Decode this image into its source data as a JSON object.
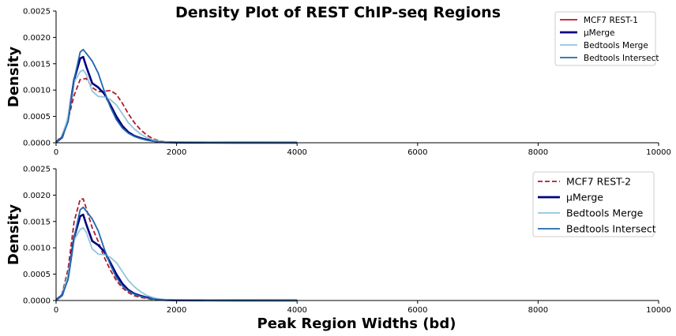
{
  "figure": {
    "title": "Density Plot of REST ChIP-seq Regions"
  },
  "colors": {
    "rest": "#b2182b",
    "umerge": "#000080",
    "bedtools_merge": "#92c5de",
    "bedtools_intersect": "#2166ac"
  },
  "chart_data": [
    {
      "type": "line",
      "title": "",
      "xlabel": "",
      "ylabel": "Density",
      "xlim": [
        0,
        10000
      ],
      "ylim": [
        0,
        0.0025
      ],
      "xticks": [
        "0",
        "2000",
        "4000",
        "6000",
        "8000",
        "10000"
      ],
      "xtick_values": [
        0,
        2000,
        4000,
        6000,
        8000,
        10000
      ],
      "yticks": [
        "0.0000",
        "0.0005",
        "0.0010",
        "0.0015",
        "0.0020",
        "0.0025"
      ],
      "ytick_values": [
        0,
        0.0005,
        0.001,
        0.0015,
        0.002,
        0.0025
      ],
      "legend_position": "upper-right",
      "series": [
        {
          "name": "MCF7 REST-1",
          "color": "#b2182b",
          "dash": true,
          "legend_dash": false,
          "x": [
            0,
            100,
            200,
            300,
            400,
            500,
            600,
            700,
            800,
            900,
            1000,
            1100,
            1200,
            1300,
            1400,
            1500,
            1600,
            1700,
            1800,
            2000,
            2500,
            3000,
            4000
          ],
          "y": [
            2e-05,
            0.00012,
            0.00045,
            0.0009,
            0.0012,
            0.00122,
            0.00105,
            0.00097,
            0.00098,
            0.00099,
            0.00092,
            0.00075,
            0.00055,
            0.00038,
            0.00025,
            0.00015,
            8e-05,
            4e-05,
            2e-05,
            1e-05,
            4e-06,
            2e-06,
            1e-06
          ]
        },
        {
          "name": "μMerge",
          "color": "#000080",
          "dash": false,
          "x": [
            0,
            100,
            200,
            300,
            400,
            450,
            500,
            600,
            700,
            800,
            900,
            1000,
            1100,
            1200,
            1300,
            1400,
            1500,
            1600,
            1700,
            1800,
            2000,
            2500,
            3000,
            4000
          ],
          "y": [
            1e-05,
            0.0001,
            0.00045,
            0.0012,
            0.0016,
            0.00163,
            0.00145,
            0.00113,
            0.00105,
            0.00093,
            0.00072,
            0.0005,
            0.00032,
            0.0002,
            0.00013,
            9e-05,
            6e-05,
            4e-05,
            2e-05,
            1e-05,
            5e-06,
            2e-06,
            1e-06,
            5e-07
          ]
        },
        {
          "name": "Bedtools Merge",
          "color": "#92c5de",
          "dash": false,
          "x": [
            0,
            100,
            200,
            300,
            400,
            450,
            500,
            600,
            700,
            800,
            900,
            1000,
            1100,
            1200,
            1300,
            1400,
            1500,
            1600,
            1700,
            1800,
            2000,
            2500,
            3000,
            4000
          ],
          "y": [
            1e-05,
            0.0001,
            0.0005,
            0.00115,
            0.00135,
            0.00138,
            0.0013,
            0.00098,
            0.00088,
            0.00087,
            0.00082,
            0.00072,
            0.00055,
            0.00038,
            0.00026,
            0.00017,
            0.0001,
            6e-05,
            3e-05,
            2e-05,
            8e-06,
            3e-06,
            1e-06,
            5e-07
          ]
        },
        {
          "name": "Bedtools Intersect",
          "color": "#2166ac",
          "dash": false,
          "x": [
            0,
            100,
            200,
            300,
            400,
            450,
            500,
            600,
            700,
            800,
            900,
            1000,
            1100,
            1200,
            1300,
            1400,
            1500,
            1600,
            1700,
            1800,
            2000,
            2500,
            3000,
            4000
          ],
          "y": [
            1e-05,
            0.0001,
            0.0004,
            0.0012,
            0.00172,
            0.00177,
            0.0017,
            0.00155,
            0.00132,
            0.00098,
            0.00068,
            0.00044,
            0.00028,
            0.00018,
            0.00012,
            8e-05,
            5e-05,
            3e-05,
            2e-05,
            1e-05,
            5e-06,
            2e-06,
            1e-06,
            5e-07
          ]
        }
      ]
    },
    {
      "type": "line",
      "title": "",
      "xlabel": "Peak Region Widths (bd)",
      "ylabel": "Density",
      "xlim": [
        0,
        10000
      ],
      "ylim": [
        0,
        0.0025
      ],
      "xticks": [
        "0",
        "2000",
        "4000",
        "6000",
        "8000",
        "10000"
      ],
      "xtick_values": [
        0,
        2000,
        4000,
        6000,
        8000,
        10000
      ],
      "yticks": [
        "0.0000",
        "0.0005",
        "0.0010",
        "0.0015",
        "0.0020",
        "0.0025"
      ],
      "ytick_values": [
        0,
        0.0005,
        0.001,
        0.0015,
        0.002,
        0.0025
      ],
      "legend_position": "upper-right",
      "series": [
        {
          "name": "MCF7 REST-2",
          "color": "#b2182b",
          "dash": true,
          "legend_dash": true,
          "x": [
            0,
            100,
            200,
            300,
            400,
            450,
            500,
            600,
            700,
            800,
            900,
            1000,
            1100,
            1200,
            1300,
            1400,
            1500,
            1600,
            1800,
            2000,
            2500,
            3000,
            4000
          ],
          "y": [
            1e-05,
            0.00012,
            0.0006,
            0.0015,
            0.00192,
            0.00193,
            0.00175,
            0.00138,
            0.00112,
            0.00082,
            0.00058,
            0.00038,
            0.00024,
            0.00015,
            9e-05,
            6e-05,
            4e-05,
            2e-05,
            1e-05,
            5e-06,
            2e-06,
            1e-06,
            5e-07
          ]
        },
        {
          "name": "μMerge",
          "color": "#000080",
          "dash": false,
          "x": [
            0,
            100,
            200,
            300,
            400,
            450,
            500,
            600,
            700,
            800,
            900,
            1000,
            1100,
            1200,
            1300,
            1400,
            1500,
            1600,
            1700,
            1800,
            2000,
            2500,
            3000,
            4000
          ],
          "y": [
            1e-05,
            0.0001,
            0.00045,
            0.0012,
            0.0016,
            0.00163,
            0.00145,
            0.00113,
            0.00105,
            0.00093,
            0.00072,
            0.0005,
            0.00032,
            0.0002,
            0.00013,
            9e-05,
            6e-05,
            4e-05,
            2e-05,
            1e-05,
            5e-06,
            2e-06,
            1e-06,
            5e-07
          ]
        },
        {
          "name": "Bedtools Merge",
          "color": "#92c5de",
          "dash": false,
          "x": [
            0,
            100,
            200,
            300,
            400,
            450,
            500,
            600,
            700,
            800,
            900,
            1000,
            1100,
            1200,
            1300,
            1400,
            1500,
            1600,
            1700,
            1800,
            2000,
            2500,
            3000,
            4000
          ],
          "y": [
            1e-05,
            0.0001,
            0.0005,
            0.00115,
            0.00135,
            0.00138,
            0.0013,
            0.00098,
            0.00088,
            0.00087,
            0.00082,
            0.00072,
            0.00055,
            0.00038,
            0.00026,
            0.00017,
            0.0001,
            6e-05,
            3e-05,
            2e-05,
            8e-06,
            3e-06,
            1e-06,
            5e-07
          ]
        },
        {
          "name": "Bedtools Intersect",
          "color": "#2166ac",
          "dash": false,
          "x": [
            0,
            100,
            200,
            300,
            400,
            450,
            500,
            600,
            700,
            800,
            900,
            1000,
            1100,
            1200,
            1300,
            1400,
            1500,
            1600,
            1700,
            1800,
            2000,
            2500,
            3000,
            4000
          ],
          "y": [
            1e-05,
            0.0001,
            0.0004,
            0.0012,
            0.00172,
            0.00177,
            0.0017,
            0.00155,
            0.00132,
            0.00098,
            0.00068,
            0.00044,
            0.00028,
            0.00018,
            0.00012,
            8e-05,
            5e-05,
            3e-05,
            2e-05,
            1e-05,
            5e-06,
            2e-06,
            1e-06,
            5e-07
          ]
        }
      ]
    }
  ]
}
